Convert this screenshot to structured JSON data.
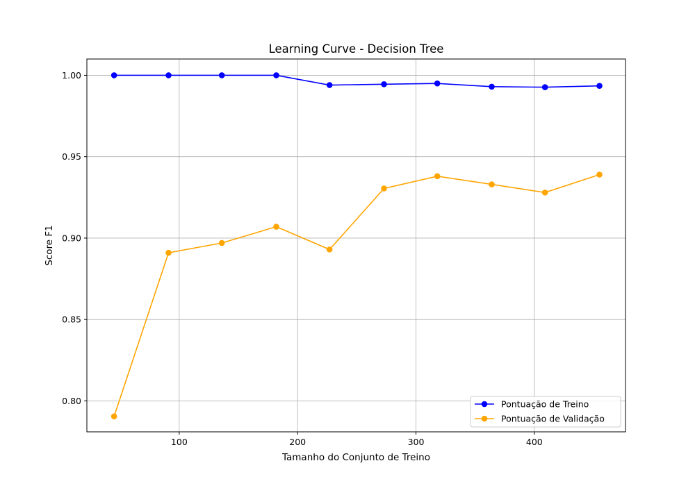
{
  "chart_data": {
    "type": "line",
    "title": "Learning Curve - Decision Tree",
    "xlabel": "Tamanho do Conjunto de Treino",
    "ylabel": "Score F1",
    "xlim": [
      22,
      477
    ],
    "ylim": [
      0.781,
      1.01
    ],
    "xticks": [
      100,
      200,
      300,
      400
    ],
    "yticks": [
      0.8,
      0.85,
      0.9,
      0.95,
      1.0
    ],
    "grid": true,
    "legend_position": "lower-right",
    "x": [
      45,
      91,
      136,
      182,
      227,
      273,
      318,
      364,
      409,
      455
    ],
    "series": [
      {
        "name": "Pontuação de Treino",
        "color": "#0000ff",
        "values": [
          1.0,
          1.0,
          1.0,
          1.0,
          0.994,
          0.9945,
          0.995,
          0.993,
          0.9927,
          0.9935
        ]
      },
      {
        "name": "Pontuação de Validação",
        "color": "#ffa500",
        "values": [
          0.7905,
          0.891,
          0.897,
          0.907,
          0.893,
          0.9305,
          0.938,
          0.933,
          0.928,
          0.939
        ]
      }
    ]
  }
}
